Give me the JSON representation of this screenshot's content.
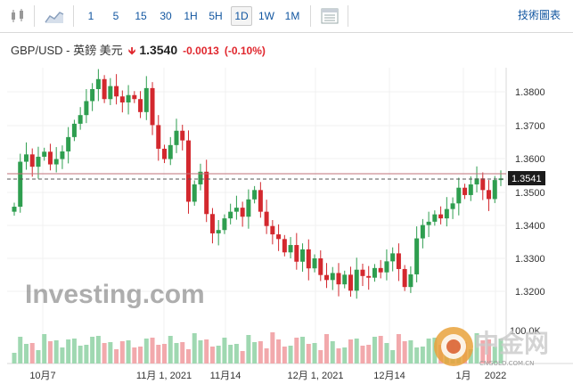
{
  "toolbar": {
    "timeframes": [
      "1",
      "5",
      "15",
      "30",
      "1H",
      "5H",
      "1D",
      "1W",
      "1M"
    ],
    "active": "1D",
    "tools_label": "技術圖表",
    "candle_icon": "candlestick-icon",
    "area_icon": "area-chart-icon",
    "table_icon": "table-icon"
  },
  "header": {
    "pair": "GBP/USD - 英鎊 美元",
    "price": "1.3540",
    "change": "-0.0013",
    "pct": "(-0.10%)"
  },
  "chart": {
    "y_ticks": [
      "1.3800",
      "1.3700",
      "1.3600",
      "1.3500",
      "1.3400",
      "1.3300",
      "1.3200"
    ],
    "x_ticks": [
      "10月7",
      "11月 1, 2021",
      "11月14",
      "12月 1, 2021",
      "12月14",
      "1月",
      "2022"
    ],
    "price_label": "1.3541",
    "volume_label": "100.0K",
    "watermark": "Investing.com",
    "site_watermark": "中金网",
    "site_url": "CNGOLD.COM.CN",
    "colors": {
      "up": "#2e9e4f",
      "down": "#d3282e",
      "line": "#c2717a"
    }
  }
}
